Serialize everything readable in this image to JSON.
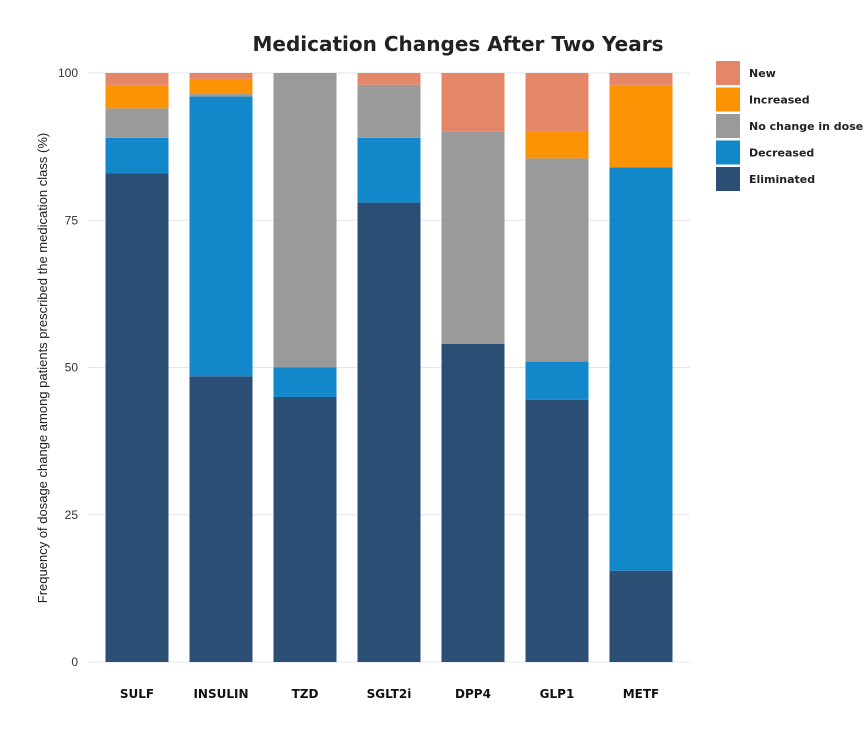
{
  "chart_data": {
    "type": "bar",
    "stacked": true,
    "title": "Medication Changes After Two Years",
    "xlabel": "",
    "ylabel": "Frequency of dosage change among patients prescribed the medication class (%)",
    "ylim": [
      0,
      100
    ],
    "yticks": [
      0,
      25,
      50,
      75,
      100
    ],
    "grid": true,
    "legend_position": "right-top",
    "categories": [
      "SULF",
      "INSULIN",
      "TZD",
      "SGLT2i",
      "DPP4",
      "GLP1",
      "METF"
    ],
    "series": [
      {
        "name": "Eliminated",
        "color": "#2b4f74",
        "values": [
          83,
          48.5,
          45,
          78,
          54,
          44.5,
          15.5
        ]
      },
      {
        "name": "Decreased",
        "color": "#1287c9",
        "values": [
          6,
          47.5,
          5,
          11,
          0,
          6.5,
          68.5
        ]
      },
      {
        "name": "No change in dose",
        "color": "#9a9a9a",
        "values": [
          5,
          0.5,
          50,
          9,
          36,
          34.5,
          0
        ]
      },
      {
        "name": "Increased",
        "color": "#fb9305",
        "values": [
          4,
          2.5,
          0,
          0,
          0,
          4.5,
          14
        ]
      },
      {
        "name": "New",
        "color": "#e48668",
        "values": [
          2,
          1,
          0,
          2,
          10,
          10,
          2
        ]
      }
    ],
    "legend_order": [
      "New",
      "Increased",
      "No change in dose",
      "Decreased",
      "Eliminated"
    ]
  }
}
